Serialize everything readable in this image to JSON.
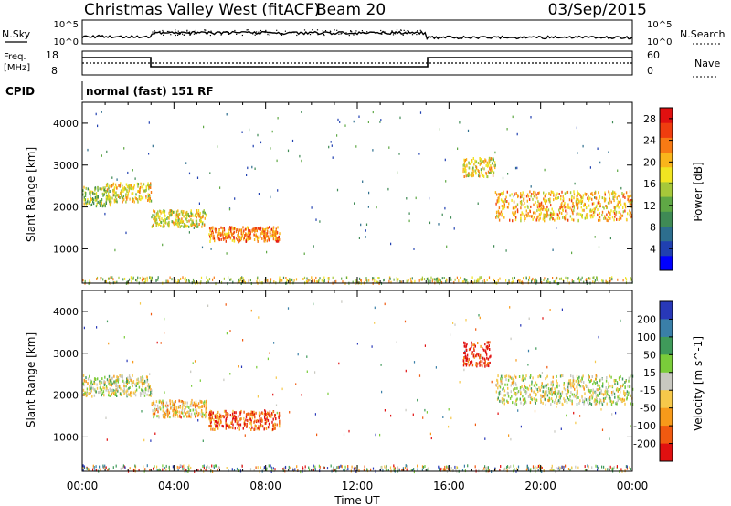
{
  "header": {
    "radar": "Christmas Valley West (fitACF)",
    "beam": "Beam 20",
    "date": "03/Sep/2015"
  },
  "noise_panel": {
    "left_label": "N.Sky",
    "right_label": "N.Search",
    "tick_top": "10^5",
    "tick_bottom": "10^0"
  },
  "freq_panel": {
    "left_label_1": "Freq.",
    "left_label_2": "[MHz]",
    "right_label": "Nave",
    "left_ticks": [
      "18",
      "8"
    ],
    "right_ticks": [
      "60",
      "0"
    ]
  },
  "cpid": {
    "label": "CPID",
    "value": "normal (fast) 151 RF"
  },
  "x_axis": {
    "label": "Time UT",
    "ticks": [
      "00:00",
      "04:00",
      "08:00",
      "12:00",
      "16:00",
      "20:00",
      "00:00"
    ]
  },
  "chart_data": [
    {
      "type": "heatmap",
      "title": "",
      "xlabel": "Time UT",
      "ylabel": "Slant Range [km]",
      "xlim": [
        0,
        24
      ],
      "ylim": [
        180,
        4500
      ],
      "yticks": [
        "1000",
        "2000",
        "3000",
        "4000"
      ],
      "colorbar": {
        "label": "Power [dB]",
        "ticks": [
          "4",
          "8",
          "12",
          "16",
          "20",
          "24",
          "28"
        ],
        "range": [
          0,
          30
        ],
        "colors": [
          "#0000ff",
          "#2040b0",
          "#2d6e8e",
          "#3f8a55",
          "#5fa845",
          "#a6c83a",
          "#f1e421",
          "#f9b51b",
          "#f77a14",
          "#ef3d0f",
          "#e11010"
        ]
      },
      "regions": [
        {
          "t0": 0.0,
          "t1": 1.2,
          "r0": 2050,
          "r1": 2500,
          "level": 16
        },
        {
          "t0": 1.0,
          "t1": 3.0,
          "r0": 2150,
          "r1": 2600,
          "level": 18
        },
        {
          "t0": 3.0,
          "t1": 5.4,
          "r0": 1550,
          "r1": 1950,
          "level": 17
        },
        {
          "t0": 5.5,
          "t1": 8.6,
          "r0": 1200,
          "r1": 1550,
          "level": 24
        },
        {
          "t0": 16.6,
          "t1": 18.0,
          "r0": 2750,
          "r1": 3200,
          "level": 18
        },
        {
          "t0": 18.0,
          "t1": 24.0,
          "r0": 1700,
          "r1": 2400,
          "level": 22
        }
      ]
    },
    {
      "type": "heatmap",
      "title": "",
      "xlabel": "Time UT",
      "ylabel": "Slant Range [km]",
      "xlim": [
        0,
        24
      ],
      "ylim": [
        180,
        4500
      ],
      "yticks": [
        "1000",
        "2000",
        "3000",
        "4000"
      ],
      "colorbar": {
        "label": "Velocity [m s^-1]",
        "ticks": [
          "200",
          "100",
          "50",
          "15",
          "-15",
          "-50",
          "-100",
          "-200"
        ],
        "colors": [
          "#2838b8",
          "#3a7fa8",
          "#3f9a5a",
          "#7acc3a",
          "#c8c8c0",
          "#f6c84a",
          "#f79a1a",
          "#f05a10",
          "#e01010"
        ]
      },
      "regions": [
        {
          "t0": 0.0,
          "t1": 3.0,
          "r0": 2000,
          "r1": 2500,
          "velocity": 0
        },
        {
          "t0": 3.0,
          "t1": 5.4,
          "r0": 1500,
          "r1": 1900,
          "velocity": -30
        },
        {
          "t0": 5.5,
          "t1": 8.6,
          "r0": 1200,
          "r1": 1650,
          "velocity": -80
        },
        {
          "t0": 16.6,
          "t1": 17.8,
          "r0": 2700,
          "r1": 3300,
          "velocity": -150
        },
        {
          "t0": 18.0,
          "t1": 24.0,
          "r0": 1800,
          "r1": 2500,
          "velocity": 0
        }
      ]
    }
  ]
}
